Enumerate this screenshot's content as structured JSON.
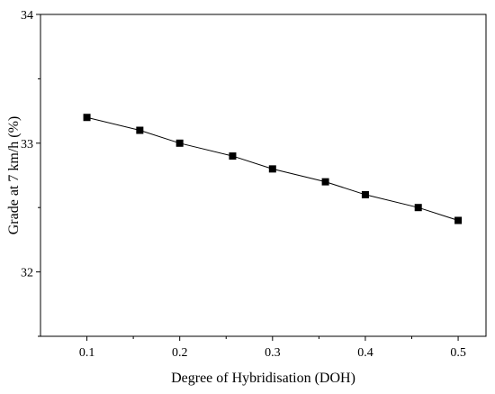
{
  "chart_data": {
    "type": "line",
    "xlabel": "Degree of Hybridisation (DOH)",
    "ylabel": "Grade at 7 km/h (%)",
    "xlim": [
      0.05,
      0.53
    ],
    "ylim": [
      31.5,
      34
    ],
    "x_ticks": [
      "0.1",
      "0.2",
      "0.3",
      "0.4",
      "0.5"
    ],
    "y_ticks": [
      "32",
      "33",
      "34"
    ],
    "grid": false,
    "marker": "square",
    "line_color": "#000000",
    "series": [
      {
        "x": [
          0.1,
          0.157,
          0.2,
          0.257,
          0.3,
          0.357,
          0.4,
          0.457,
          0.5
        ],
        "y": [
          33.2,
          33.1,
          33.0,
          32.9,
          32.8,
          32.7,
          32.6,
          32.5,
          32.4
        ]
      }
    ]
  }
}
